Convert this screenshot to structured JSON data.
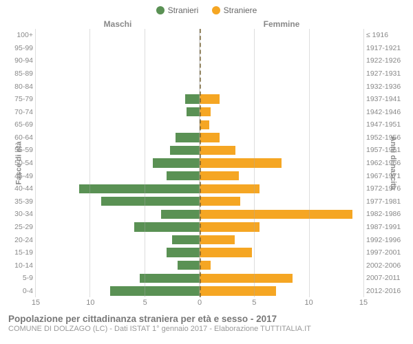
{
  "legend": {
    "male": {
      "label": "Stranieri",
      "color": "#5a9154"
    },
    "female": {
      "label": "Straniere",
      "color": "#f5a623"
    }
  },
  "headers": {
    "left": "Maschi",
    "right": "Femmine"
  },
  "y_axis_titles": {
    "left": "Fasce di età",
    "right": "Anni di nascita"
  },
  "footer": {
    "title": "Popolazione per cittadinanza straniera per età e sesso - 2017",
    "sub": "COMUNE DI DOLZAGO (LC) - Dati ISTAT 1° gennaio 2017 - Elaborazione TUTTITALIA.IT"
  },
  "axis": {
    "max": 15,
    "ticks": [
      15,
      10,
      5,
      0,
      5,
      10,
      15
    ]
  },
  "colors": {
    "grid": "rgba(170,170,170,0.4)",
    "center_line": "rgba(110,90,40,0.7)",
    "bg": "#ffffff"
  },
  "rows": [
    {
      "age": "100+",
      "birth": "≤ 1916",
      "m": 0,
      "f": 0
    },
    {
      "age": "95-99",
      "birth": "1917-1921",
      "m": 0,
      "f": 0
    },
    {
      "age": "90-94",
      "birth": "1922-1926",
      "m": 0,
      "f": 0
    },
    {
      "age": "85-89",
      "birth": "1927-1931",
      "m": 0,
      "f": 0
    },
    {
      "age": "80-84",
      "birth": "1932-1936",
      "m": 0,
      "f": 0
    },
    {
      "age": "75-79",
      "birth": "1937-1941",
      "m": 1.3,
      "f": 1.8
    },
    {
      "age": "70-74",
      "birth": "1942-1946",
      "m": 1.2,
      "f": 1.0
    },
    {
      "age": "65-69",
      "birth": "1947-1951",
      "m": 0,
      "f": 0.9
    },
    {
      "age": "60-64",
      "birth": "1952-1956",
      "m": 2.2,
      "f": 1.8
    },
    {
      "age": "55-59",
      "birth": "1957-1961",
      "m": 2.7,
      "f": 3.3
    },
    {
      "age": "50-54",
      "birth": "1962-1966",
      "m": 4.3,
      "f": 7.5
    },
    {
      "age": "45-49",
      "birth": "1967-1971",
      "m": 3.0,
      "f": 3.6
    },
    {
      "age": "40-44",
      "birth": "1972-1976",
      "m": 11.0,
      "f": 5.5
    },
    {
      "age": "35-39",
      "birth": "1977-1981",
      "m": 9.0,
      "f": 3.7
    },
    {
      "age": "30-34",
      "birth": "1982-1986",
      "m": 3.5,
      "f": 14.0
    },
    {
      "age": "25-29",
      "birth": "1987-1991",
      "m": 6.0,
      "f": 5.5
    },
    {
      "age": "20-24",
      "birth": "1992-1996",
      "m": 2.5,
      "f": 3.2
    },
    {
      "age": "15-19",
      "birth": "1997-2001",
      "m": 3.0,
      "f": 4.8
    },
    {
      "age": "10-14",
      "birth": "2002-2006",
      "m": 2.0,
      "f": 1.0
    },
    {
      "age": "5-9",
      "birth": "2007-2011",
      "m": 5.5,
      "f": 8.5
    },
    {
      "age": "0-4",
      "birth": "2012-2016",
      "m": 8.2,
      "f": 7.0
    }
  ]
}
